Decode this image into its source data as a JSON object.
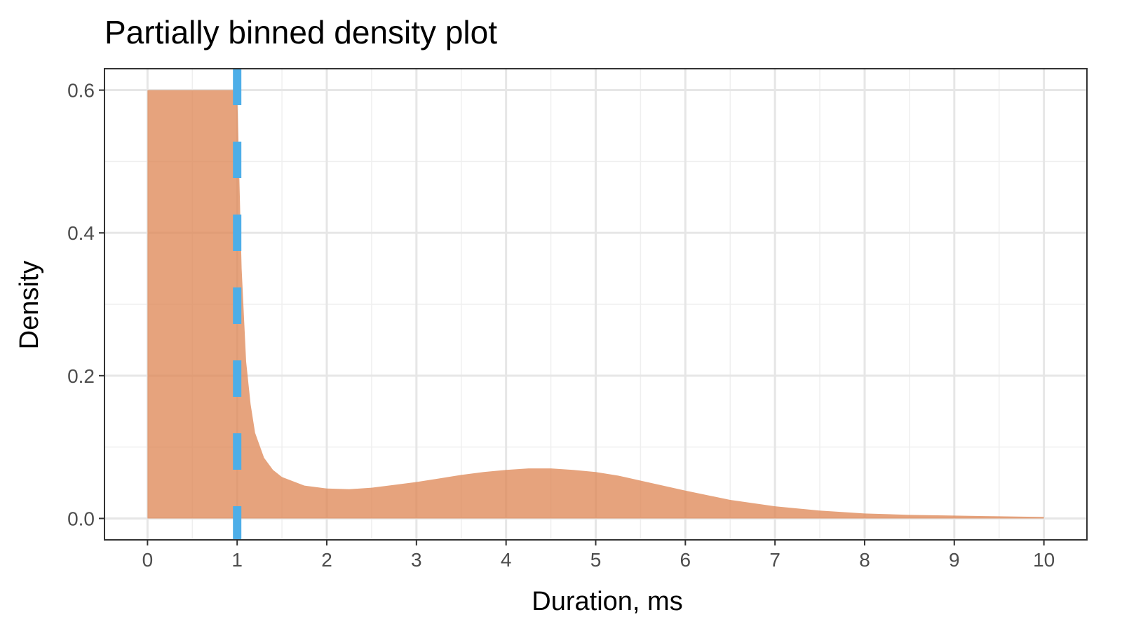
{
  "chart_data": {
    "type": "area",
    "title": "Partially binned density plot",
    "xlabel": "Duration, ms",
    "ylabel": "Density",
    "xlim": [
      -0.48,
      10.48
    ],
    "ylim": [
      -0.03,
      0.63
    ],
    "x_ticks": [
      0,
      1,
      2,
      3,
      4,
      5,
      6,
      7,
      8,
      9,
      10
    ],
    "y_ticks": [
      0.0,
      0.2,
      0.4,
      0.6
    ],
    "y_tick_labels": [
      "0.0",
      "0.2",
      "0.4",
      "0.6"
    ],
    "grid": true,
    "series": [
      {
        "fill_color": "#dd8452",
        "fill_opacity": 0.75,
        "points": [
          [
            0,
            0.6
          ],
          [
            1,
            0.6
          ],
          [
            1.02,
            0.5
          ],
          [
            1.05,
            0.35
          ],
          [
            1.1,
            0.22
          ],
          [
            1.15,
            0.16
          ],
          [
            1.2,
            0.12
          ],
          [
            1.3,
            0.085
          ],
          [
            1.4,
            0.068
          ],
          [
            1.5,
            0.058
          ],
          [
            1.75,
            0.046
          ],
          [
            2.0,
            0.042
          ],
          [
            2.25,
            0.041
          ],
          [
            2.5,
            0.043
          ],
          [
            2.75,
            0.047
          ],
          [
            3.0,
            0.051
          ],
          [
            3.25,
            0.056
          ],
          [
            3.5,
            0.061
          ],
          [
            3.75,
            0.065
          ],
          [
            4.0,
            0.068
          ],
          [
            4.25,
            0.07
          ],
          [
            4.5,
            0.07
          ],
          [
            4.75,
            0.068
          ],
          [
            5.0,
            0.065
          ],
          [
            5.25,
            0.06
          ],
          [
            5.5,
            0.053
          ],
          [
            5.75,
            0.046
          ],
          [
            6.0,
            0.039
          ],
          [
            6.5,
            0.026
          ],
          [
            7.0,
            0.017
          ],
          [
            7.5,
            0.011
          ],
          [
            8.0,
            0.007
          ],
          [
            8.5,
            0.005
          ],
          [
            9.0,
            0.004
          ],
          [
            9.5,
            0.003
          ],
          [
            10.0,
            0.002
          ]
        ]
      }
    ],
    "vline": {
      "x": 1,
      "color": "#4daee8",
      "style": "dashed"
    }
  }
}
